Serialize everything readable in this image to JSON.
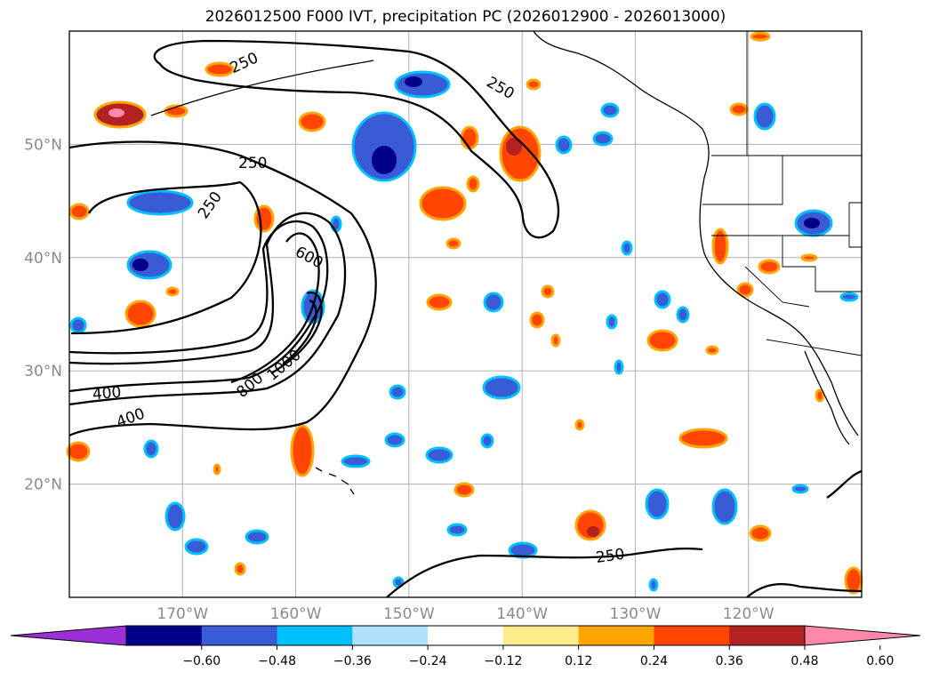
{
  "title": "2026012500 F000 IVT, precipitation PC (2026012900 - 2026013000)",
  "map": {
    "lat_ticks": [
      {
        "lat": 50,
        "label": "50°N"
      },
      {
        "lat": 40,
        "label": "40°N"
      },
      {
        "lat": 30,
        "label": "30°N"
      },
      {
        "lat": 20,
        "label": "20°N"
      }
    ],
    "lon_ticks": [
      {
        "lon": -170,
        "label": "170°W"
      },
      {
        "lon": -160,
        "label": "160°W"
      },
      {
        "lon": -150,
        "label": "150°W"
      },
      {
        "lon": -140,
        "label": "140°W"
      },
      {
        "lon": -130,
        "label": "130°W"
      },
      {
        "lon": -120,
        "label": "120°W"
      }
    ],
    "contour_labels": [
      "250",
      "250",
      "250",
      "250",
      "250",
      "600",
      "400",
      "400",
      "800",
      "1000"
    ]
  },
  "colorbar": {
    "colors": [
      "#9b30d9",
      "#00008b",
      "#3a5bd6",
      "#00bfff",
      "#b0e2ff",
      "#ffffff",
      "#ffeb8a",
      "#ffa500",
      "#ff4500",
      "#b22222",
      "#ff88aa"
    ],
    "labels": [
      "-0.60",
      "-0.48",
      "-0.36",
      "-0.24",
      "-0.12",
      "0.12",
      "0.24",
      "0.36",
      "0.48",
      "0.60"
    ]
  },
  "chart_data": {
    "type": "heatmap",
    "title": "2026012500 F000 IVT, precipitation PC (2026012900 - 2026013000)",
    "variables": [
      "IVT contours",
      "precipitation PC (filled)"
    ],
    "lon_range": [
      -180,
      -110
    ],
    "lat_range": [
      10,
      60
    ],
    "ivt_contour_levels": [
      250,
      400,
      600,
      800,
      1000
    ],
    "pc_levels": [
      -0.6,
      -0.48,
      -0.36,
      -0.24,
      -0.12,
      0.12,
      0.24,
      0.36,
      0.48,
      0.6
    ]
  }
}
